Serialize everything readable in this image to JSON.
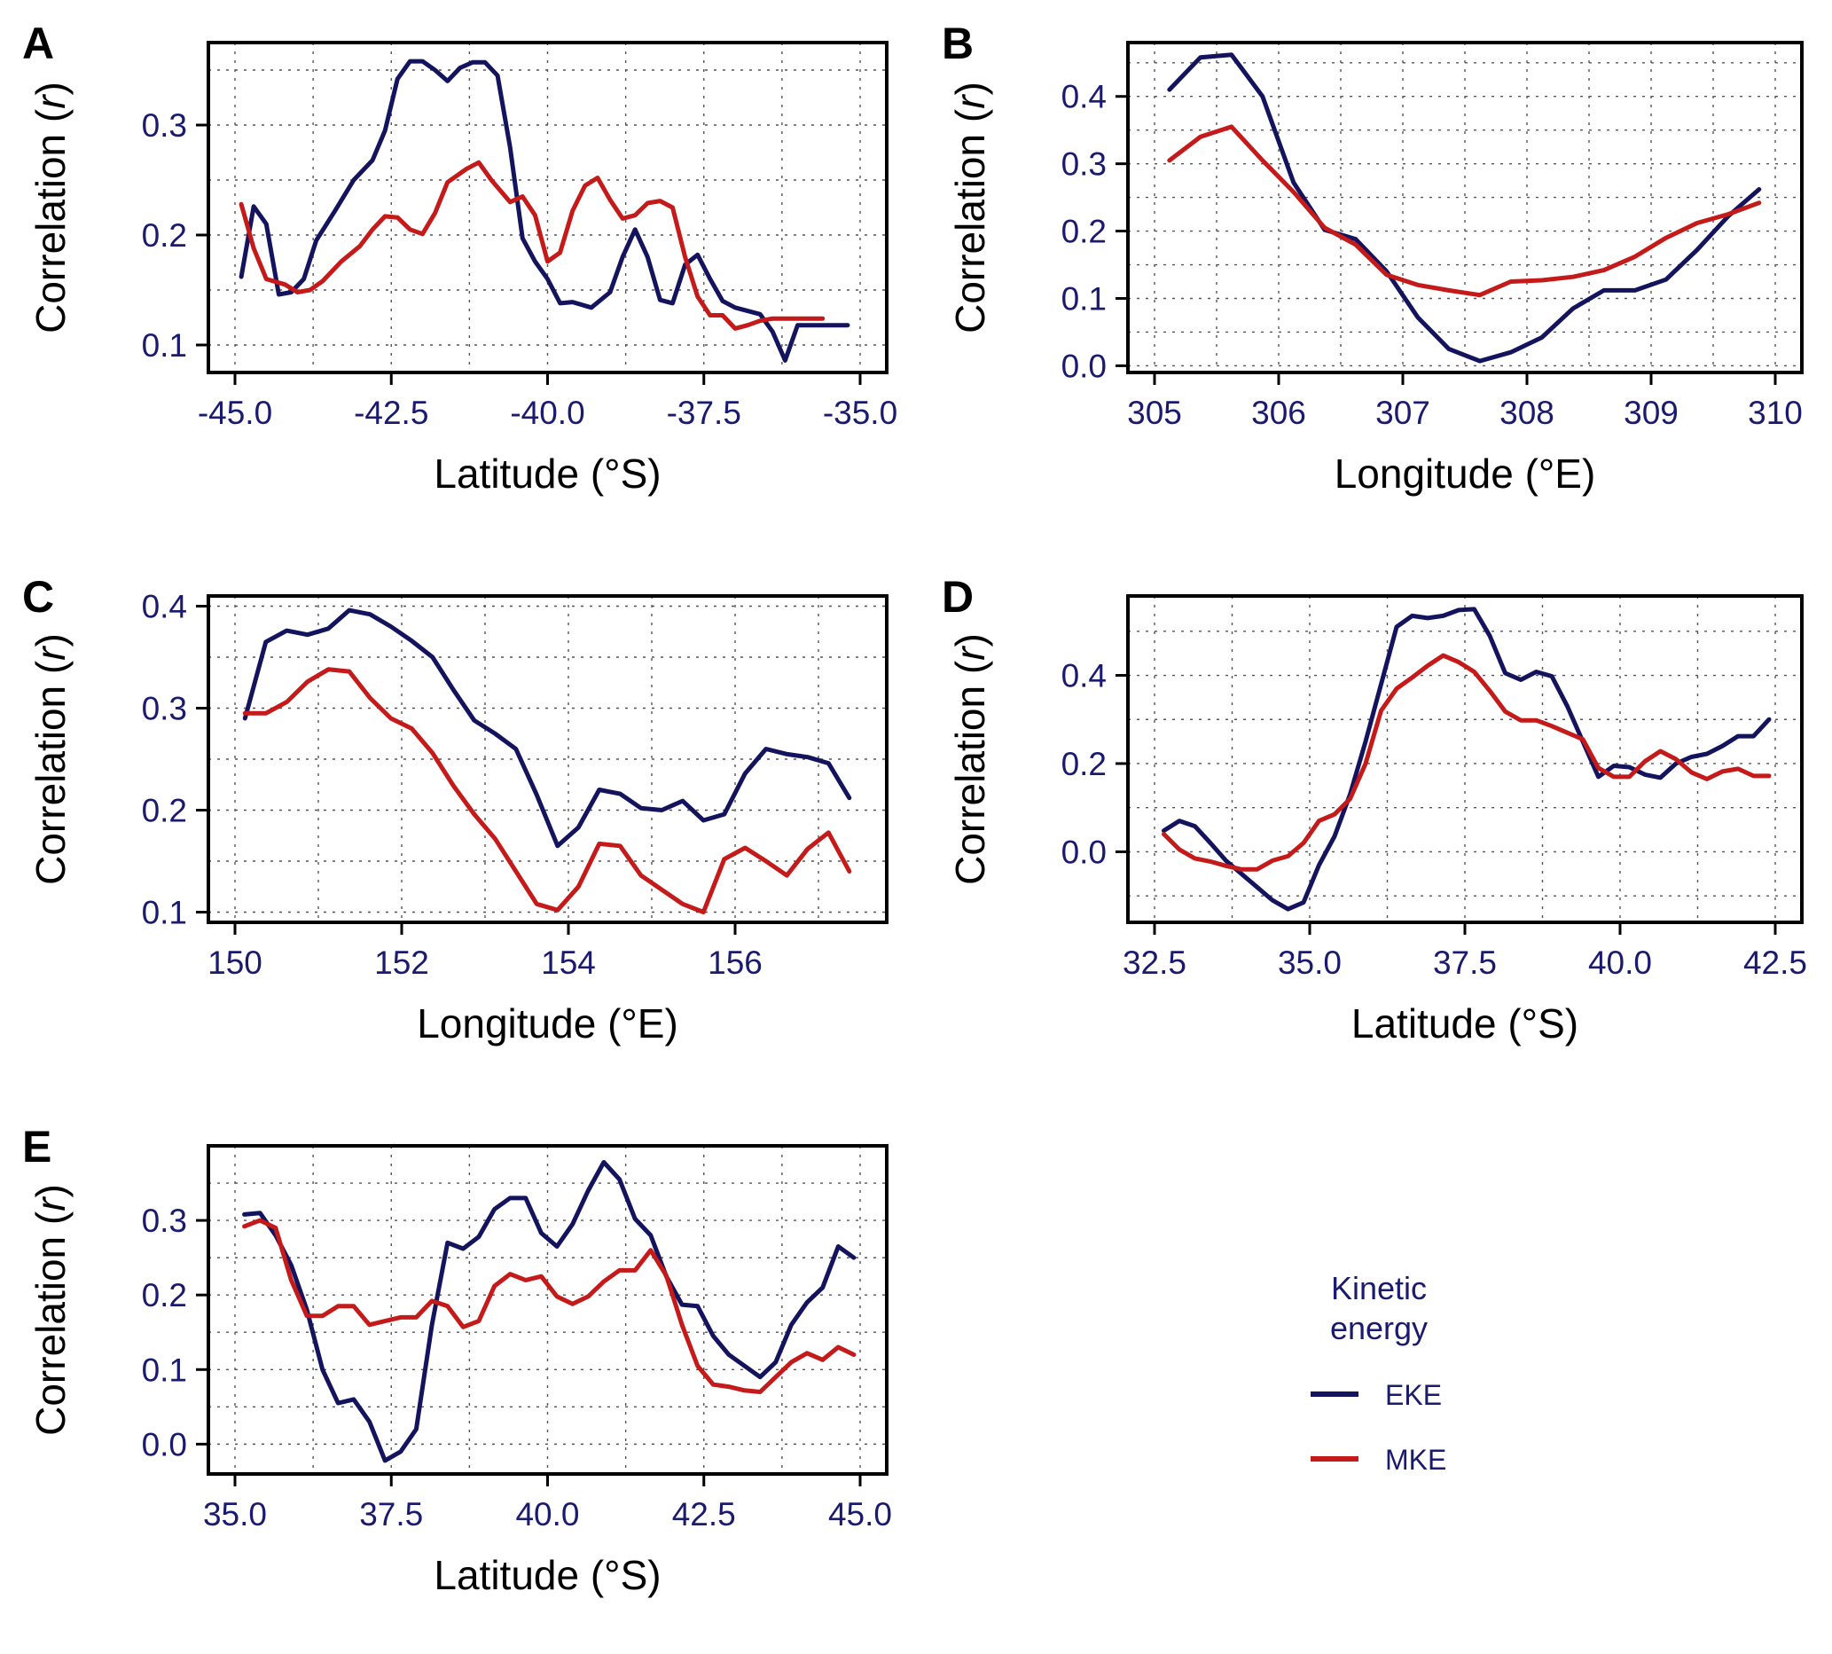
{
  "colors": {
    "eke": "#14145e",
    "mke": "#c41a1a",
    "tick_text": "#1a1a6e"
  },
  "ylabel_text": "Correlation",
  "ylabel_symbol": "(r)",
  "legend": {
    "title_line1": "Kinetic",
    "title_line2": "energy",
    "eke_label": "EKE",
    "mke_label": "MKE"
  },
  "chart_data": [
    {
      "type": "line",
      "panel": "A",
      "xlabel": "Latitude (°S)",
      "ylabel": "Correlation (r)",
      "xlim": [
        -45.0,
        -35.0
      ],
      "ylim": [
        0.075,
        0.375
      ],
      "xticks": [
        -45.0,
        -42.5,
        -40.0,
        -37.5,
        -35.0
      ],
      "xtick_labels": [
        "-45.0",
        "-42.5",
        "-40.0",
        "-37.5",
        "-35.0"
      ],
      "yticks": [
        0.1,
        0.2,
        0.3
      ],
      "ytick_labels": [
        "0.1",
        "0.2",
        "0.3"
      ],
      "grid": true,
      "series": [
        {
          "name": "EKE",
          "x": [
            -44.9,
            -44.7,
            -44.5,
            -44.3,
            -44.1,
            -43.9,
            -43.7,
            -43.4,
            -43.1,
            -42.8,
            -42.6,
            -42.4,
            -42.2,
            -42.0,
            -41.8,
            -41.6,
            -41.4,
            -41.2,
            -41.0,
            -40.8,
            -40.6,
            -40.4,
            -40.2,
            -40.0,
            -39.8,
            -39.6,
            -39.3,
            -39.0,
            -38.8,
            -38.6,
            -38.4,
            -38.2,
            -38.0,
            -37.8,
            -37.6,
            -37.4,
            -37.2,
            -37.0,
            -36.8,
            -36.6,
            -36.4,
            -36.2,
            -36.0,
            -35.8,
            -35.6,
            -35.4,
            -35.2
          ],
          "values": [
            0.162,
            0.226,
            0.21,
            0.146,
            0.148,
            0.16,
            0.195,
            0.222,
            0.25,
            0.268,
            0.295,
            0.342,
            0.358,
            0.358,
            0.35,
            0.34,
            0.352,
            0.357,
            0.357,
            0.345,
            0.28,
            0.197,
            0.176,
            0.16,
            0.138,
            0.139,
            0.134,
            0.148,
            0.18,
            0.205,
            0.18,
            0.141,
            0.138,
            0.173,
            0.182,
            0.16,
            0.14,
            0.134,
            0.131,
            0.128,
            0.112,
            0.086,
            0.118,
            0.118,
            0.118,
            0.118,
            0.118
          ]
        },
        {
          "name": "MKE",
          "x": [
            -44.9,
            -44.7,
            -44.5,
            -44.2,
            -44.0,
            -43.8,
            -43.6,
            -43.3,
            -43.0,
            -42.8,
            -42.6,
            -42.4,
            -42.2,
            -42.0,
            -41.8,
            -41.6,
            -41.3,
            -41.1,
            -40.9,
            -40.6,
            -40.4,
            -40.2,
            -40.0,
            -39.8,
            -39.6,
            -39.4,
            -39.2,
            -39.0,
            -38.8,
            -38.6,
            -38.4,
            -38.2,
            -38.0,
            -37.8,
            -37.6,
            -37.4,
            -37.2,
            -37.0,
            -36.8,
            -36.6,
            -36.4,
            -36.2,
            -36.0,
            -35.8,
            -35.6
          ],
          "values": [
            0.228,
            0.188,
            0.16,
            0.155,
            0.148,
            0.15,
            0.158,
            0.176,
            0.19,
            0.205,
            0.217,
            0.216,
            0.205,
            0.201,
            0.22,
            0.248,
            0.26,
            0.266,
            0.25,
            0.23,
            0.235,
            0.218,
            0.176,
            0.184,
            0.222,
            0.245,
            0.252,
            0.232,
            0.215,
            0.218,
            0.229,
            0.231,
            0.225,
            0.18,
            0.144,
            0.127,
            0.127,
            0.115,
            0.118,
            0.122,
            0.124,
            0.124,
            0.124,
            0.124,
            0.124
          ]
        }
      ]
    },
    {
      "type": "line",
      "panel": "B",
      "xlabel": "Longitude (°E)",
      "ylabel": "Correlation (r)",
      "xlim": [
        305.0,
        310.0
      ],
      "ylim": [
        -0.01,
        0.48
      ],
      "xticks": [
        305,
        306,
        307,
        308,
        309,
        310
      ],
      "xtick_labels": [
        "305",
        "306",
        "307",
        "308",
        "309",
        "310"
      ],
      "yticks": [
        0.0,
        0.1,
        0.2,
        0.3,
        0.4
      ],
      "ytick_labels": [
        "0.0",
        "0.1",
        "0.2",
        "0.3",
        "0.4"
      ],
      "grid": true,
      "series": [
        {
          "name": "EKE",
          "x": [
            305.12,
            305.37,
            305.62,
            305.87,
            306.12,
            306.37,
            306.62,
            306.87,
            307.12,
            307.37,
            307.62,
            307.87,
            308.12,
            308.37,
            308.62,
            308.87,
            309.12,
            309.37,
            309.62,
            309.87
          ],
          "values": [
            0.41,
            0.458,
            0.462,
            0.4,
            0.272,
            0.202,
            0.188,
            0.14,
            0.072,
            0.025,
            0.007,
            0.02,
            0.042,
            0.085,
            0.112,
            0.112,
            0.128,
            0.172,
            0.222,
            0.262
          ]
        },
        {
          "name": "MKE",
          "x": [
            305.12,
            305.37,
            305.62,
            305.87,
            306.12,
            306.37,
            306.62,
            306.87,
            307.12,
            307.37,
            307.62,
            307.87,
            308.12,
            308.37,
            308.62,
            308.87,
            309.12,
            309.37,
            309.62,
            309.87
          ],
          "values": [
            0.305,
            0.34,
            0.355,
            0.305,
            0.258,
            0.205,
            0.18,
            0.135,
            0.12,
            0.112,
            0.105,
            0.125,
            0.127,
            0.132,
            0.142,
            0.162,
            0.19,
            0.212,
            0.225,
            0.242
          ]
        }
      ]
    },
    {
      "type": "line",
      "panel": "C",
      "xlabel": "Longitude (°E)",
      "ylabel": "Correlation (r)",
      "xlim": [
        150.0,
        157.5
      ],
      "ylim": [
        0.09,
        0.41
      ],
      "xticks": [
        150,
        152,
        154,
        156
      ],
      "xtick_labels": [
        "150",
        "152",
        "154",
        "156"
      ],
      "yticks": [
        0.1,
        0.2,
        0.3,
        0.4
      ],
      "ytick_labels": [
        "0.1",
        "0.2",
        "0.3",
        "0.4"
      ],
      "grid": true,
      "series": [
        {
          "name": "EKE",
          "x": [
            150.12,
            150.37,
            150.62,
            150.87,
            151.12,
            151.37,
            151.62,
            151.87,
            152.12,
            152.37,
            152.62,
            152.87,
            153.12,
            153.37,
            153.62,
            153.87,
            154.12,
            154.37,
            154.62,
            154.87,
            155.12,
            155.37,
            155.62,
            155.87,
            156.12,
            156.37,
            156.62,
            156.87,
            157.12,
            157.37
          ],
          "values": [
            0.29,
            0.365,
            0.376,
            0.372,
            0.378,
            0.396,
            0.392,
            0.38,
            0.366,
            0.35,
            0.318,
            0.288,
            0.275,
            0.26,
            0.215,
            0.165,
            0.183,
            0.22,
            0.216,
            0.202,
            0.2,
            0.209,
            0.19,
            0.196,
            0.236,
            0.26,
            0.255,
            0.252,
            0.246,
            0.212
          ]
        },
        {
          "name": "MKE",
          "x": [
            150.12,
            150.37,
            150.62,
            150.87,
            151.12,
            151.37,
            151.62,
            151.87,
            152.12,
            152.37,
            152.62,
            152.87,
            153.12,
            153.37,
            153.62,
            153.87,
            154.12,
            154.37,
            154.62,
            154.87,
            155.12,
            155.37,
            155.62,
            155.87,
            156.12,
            156.37,
            156.62,
            156.87,
            157.12,
            157.37
          ],
          "values": [
            0.295,
            0.295,
            0.306,
            0.326,
            0.338,
            0.336,
            0.31,
            0.29,
            0.28,
            0.256,
            0.224,
            0.196,
            0.172,
            0.14,
            0.108,
            0.102,
            0.125,
            0.167,
            0.165,
            0.136,
            0.122,
            0.108,
            0.1,
            0.152,
            0.163,
            0.15,
            0.136,
            0.162,
            0.178,
            0.14
          ]
        }
      ]
    },
    {
      "type": "line",
      "panel": "D",
      "xlabel": "Latitude (°S)",
      "ylabel": "Correlation (r)",
      "xlim": [
        32.5,
        42.5
      ],
      "ylim": [
        -0.16,
        0.58
      ],
      "xticks": [
        32.5,
        35.0,
        37.5,
        40.0,
        42.5
      ],
      "xtick_labels": [
        "32.5",
        "35.0",
        "37.5",
        "40.0",
        "42.5"
      ],
      "yticks": [
        0.0,
        0.2,
        0.4
      ],
      "ytick_labels": [
        "0.0",
        "0.2",
        "0.4"
      ],
      "grid": true,
      "series": [
        {
          "name": "EKE",
          "x": [
            32.65,
            32.9,
            33.15,
            33.4,
            33.65,
            33.9,
            34.15,
            34.4,
            34.65,
            34.9,
            35.15,
            35.4,
            35.65,
            35.9,
            36.15,
            36.4,
            36.65,
            36.9,
            37.15,
            37.4,
            37.65,
            37.9,
            38.15,
            38.4,
            38.65,
            38.9,
            39.15,
            39.4,
            39.65,
            39.9,
            40.15,
            40.4,
            40.65,
            40.9,
            41.15,
            41.4,
            41.65,
            41.9,
            42.15,
            42.4
          ],
          "values": [
            0.048,
            0.07,
            0.058,
            0.02,
            -0.02,
            -0.05,
            -0.08,
            -0.11,
            -0.13,
            -0.115,
            -0.03,
            0.035,
            0.13,
            0.25,
            0.38,
            0.51,
            0.535,
            0.53,
            0.535,
            0.548,
            0.55,
            0.49,
            0.405,
            0.39,
            0.408,
            0.398,
            0.33,
            0.25,
            0.17,
            0.195,
            0.192,
            0.175,
            0.168,
            0.2,
            0.215,
            0.222,
            0.24,
            0.262,
            0.262,
            0.3
          ]
        },
        {
          "name": "MKE",
          "x": [
            32.65,
            32.9,
            33.15,
            33.4,
            33.65,
            33.9,
            34.15,
            34.4,
            34.65,
            34.9,
            35.15,
            35.4,
            35.65,
            35.9,
            36.15,
            36.4,
            36.65,
            36.9,
            37.15,
            37.4,
            37.65,
            37.9,
            38.15,
            38.4,
            38.65,
            38.9,
            39.15,
            39.4,
            39.65,
            39.9,
            40.15,
            40.4,
            40.65,
            40.9,
            41.15,
            41.4,
            41.65,
            41.9,
            42.15,
            42.4
          ],
          "values": [
            0.04,
            0.005,
            -0.015,
            -0.022,
            -0.032,
            -0.04,
            -0.04,
            -0.02,
            -0.01,
            0.02,
            0.07,
            0.085,
            0.12,
            0.2,
            0.32,
            0.37,
            0.395,
            0.422,
            0.445,
            0.43,
            0.408,
            0.365,
            0.318,
            0.298,
            0.298,
            0.285,
            0.27,
            0.255,
            0.19,
            0.17,
            0.17,
            0.205,
            0.228,
            0.21,
            0.18,
            0.165,
            0.182,
            0.188,
            0.172,
            0.172
          ]
        }
      ]
    },
    {
      "type": "line",
      "panel": "E",
      "xlabel": "Latitude (°S)",
      "ylabel": "Correlation (r)",
      "xlim": [
        35.0,
        45.0
      ],
      "ylim": [
        -0.04,
        0.4
      ],
      "xticks": [
        35.0,
        37.5,
        40.0,
        42.5,
        45.0
      ],
      "xtick_labels": [
        "35.0",
        "37.5",
        "40.0",
        "42.5",
        "45.0"
      ],
      "yticks": [
        0.0,
        0.1,
        0.2,
        0.3
      ],
      "ytick_labels": [
        "0.0",
        "0.1",
        "0.2",
        "0.3"
      ],
      "grid": true,
      "series": [
        {
          "name": "EKE",
          "x": [
            35.15,
            35.4,
            35.65,
            35.9,
            36.15,
            36.4,
            36.65,
            36.9,
            37.15,
            37.4,
            37.65,
            37.9,
            38.15,
            38.4,
            38.65,
            38.9,
            39.15,
            39.4,
            39.65,
            39.9,
            40.15,
            40.4,
            40.65,
            40.9,
            41.15,
            41.4,
            41.65,
            41.9,
            42.15,
            42.4,
            42.65,
            42.9,
            43.15,
            43.4,
            43.65,
            43.9,
            44.15,
            44.4,
            44.65,
            44.9
          ],
          "values": [
            0.308,
            0.31,
            0.28,
            0.24,
            0.18,
            0.1,
            0.055,
            0.06,
            0.03,
            -0.022,
            -0.01,
            0.02,
            0.16,
            0.27,
            0.262,
            0.278,
            0.315,
            0.33,
            0.33,
            0.283,
            0.265,
            0.295,
            0.34,
            0.378,
            0.355,
            0.302,
            0.28,
            0.225,
            0.187,
            0.185,
            0.145,
            0.12,
            0.105,
            0.09,
            0.11,
            0.16,
            0.19,
            0.21,
            0.265,
            0.25
          ]
        },
        {
          "name": "MKE",
          "x": [
            35.15,
            35.4,
            35.65,
            35.9,
            36.15,
            36.4,
            36.65,
            36.9,
            37.15,
            37.4,
            37.65,
            37.9,
            38.15,
            38.4,
            38.65,
            38.9,
            39.15,
            39.4,
            39.65,
            39.9,
            40.15,
            40.4,
            40.65,
            40.9,
            41.15,
            41.4,
            41.65,
            41.9,
            42.15,
            42.4,
            42.65,
            42.9,
            43.15,
            43.4,
            43.65,
            43.9,
            44.15,
            44.4,
            44.65,
            44.9
          ],
          "values": [
            0.292,
            0.3,
            0.29,
            0.22,
            0.172,
            0.172,
            0.185,
            0.185,
            0.16,
            0.165,
            0.17,
            0.17,
            0.192,
            0.185,
            0.157,
            0.165,
            0.212,
            0.228,
            0.22,
            0.225,
            0.198,
            0.188,
            0.198,
            0.218,
            0.233,
            0.233,
            0.26,
            0.226,
            0.16,
            0.105,
            0.08,
            0.077,
            0.072,
            0.07,
            0.09,
            0.11,
            0.122,
            0.113,
            0.13,
            0.12
          ]
        }
      ]
    }
  ]
}
